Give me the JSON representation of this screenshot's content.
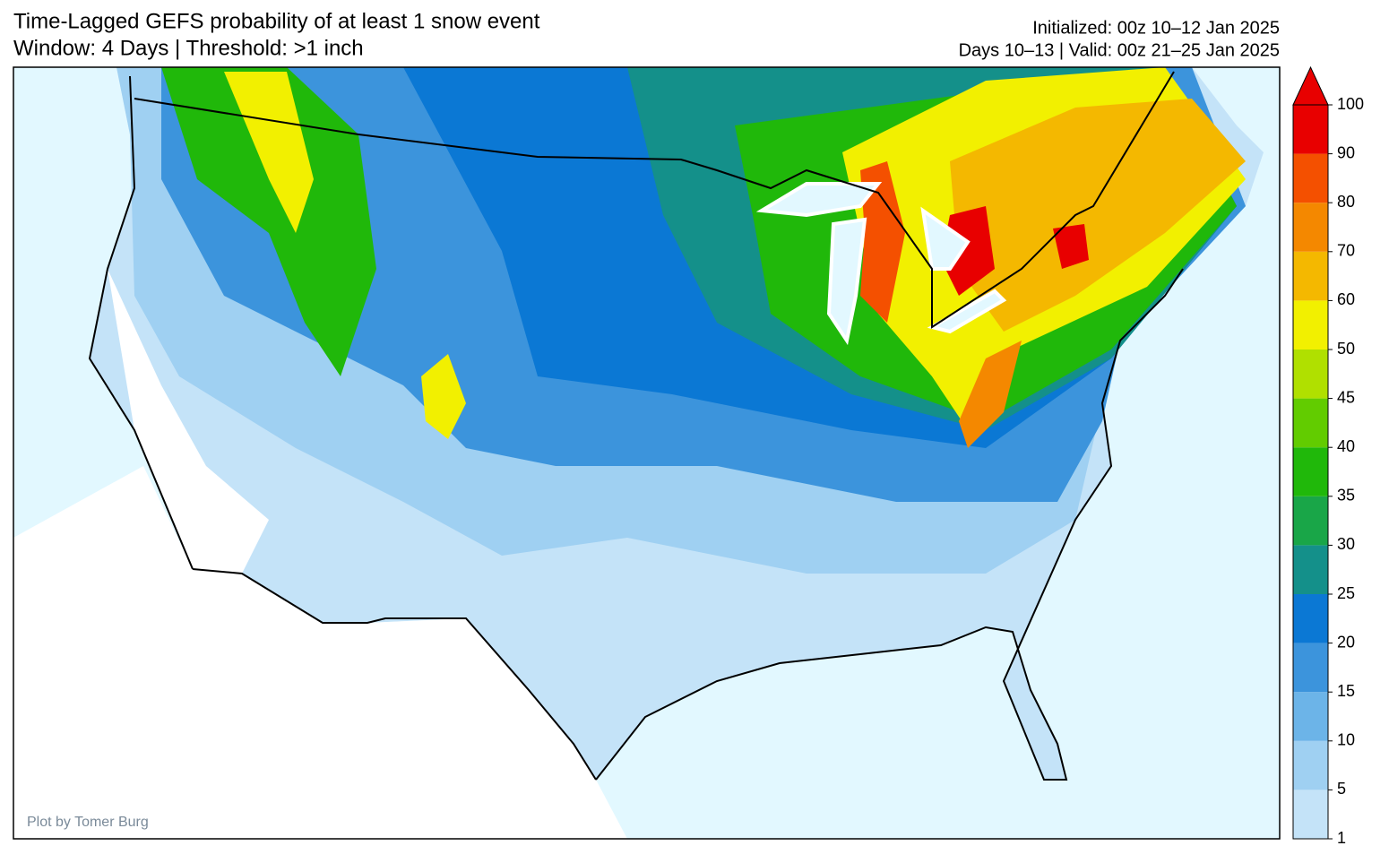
{
  "header": {
    "title_lines": [
      "Time-Lagged GEFS probability of at least 1 snow event",
      "Window: 4 Days | Threshold: >1 inch"
    ],
    "info_lines": [
      "Initialized: 00z 10–12 Jan 2025",
      "Days 10–13 | Valid: 00z 21–25 Jan 2025"
    ]
  },
  "credit": "Plot by Tomer Burg",
  "colorbar": {
    "ticks": [
      1,
      5,
      10,
      15,
      20,
      25,
      30,
      35,
      40,
      45,
      50,
      60,
      70,
      80,
      90,
      100
    ],
    "colors": [
      "#c4e3f8",
      "#9fd0f2",
      "#6cb4e8",
      "#3c94dc",
      "#0b78d4",
      "#14908a",
      "#19a648",
      "#20b80a",
      "#62cc00",
      "#b0e000",
      "#f2f000",
      "#f4b800",
      "#f48800",
      "#f45000",
      "#e80000"
    ],
    "extend_color": "#e80000"
  }
}
